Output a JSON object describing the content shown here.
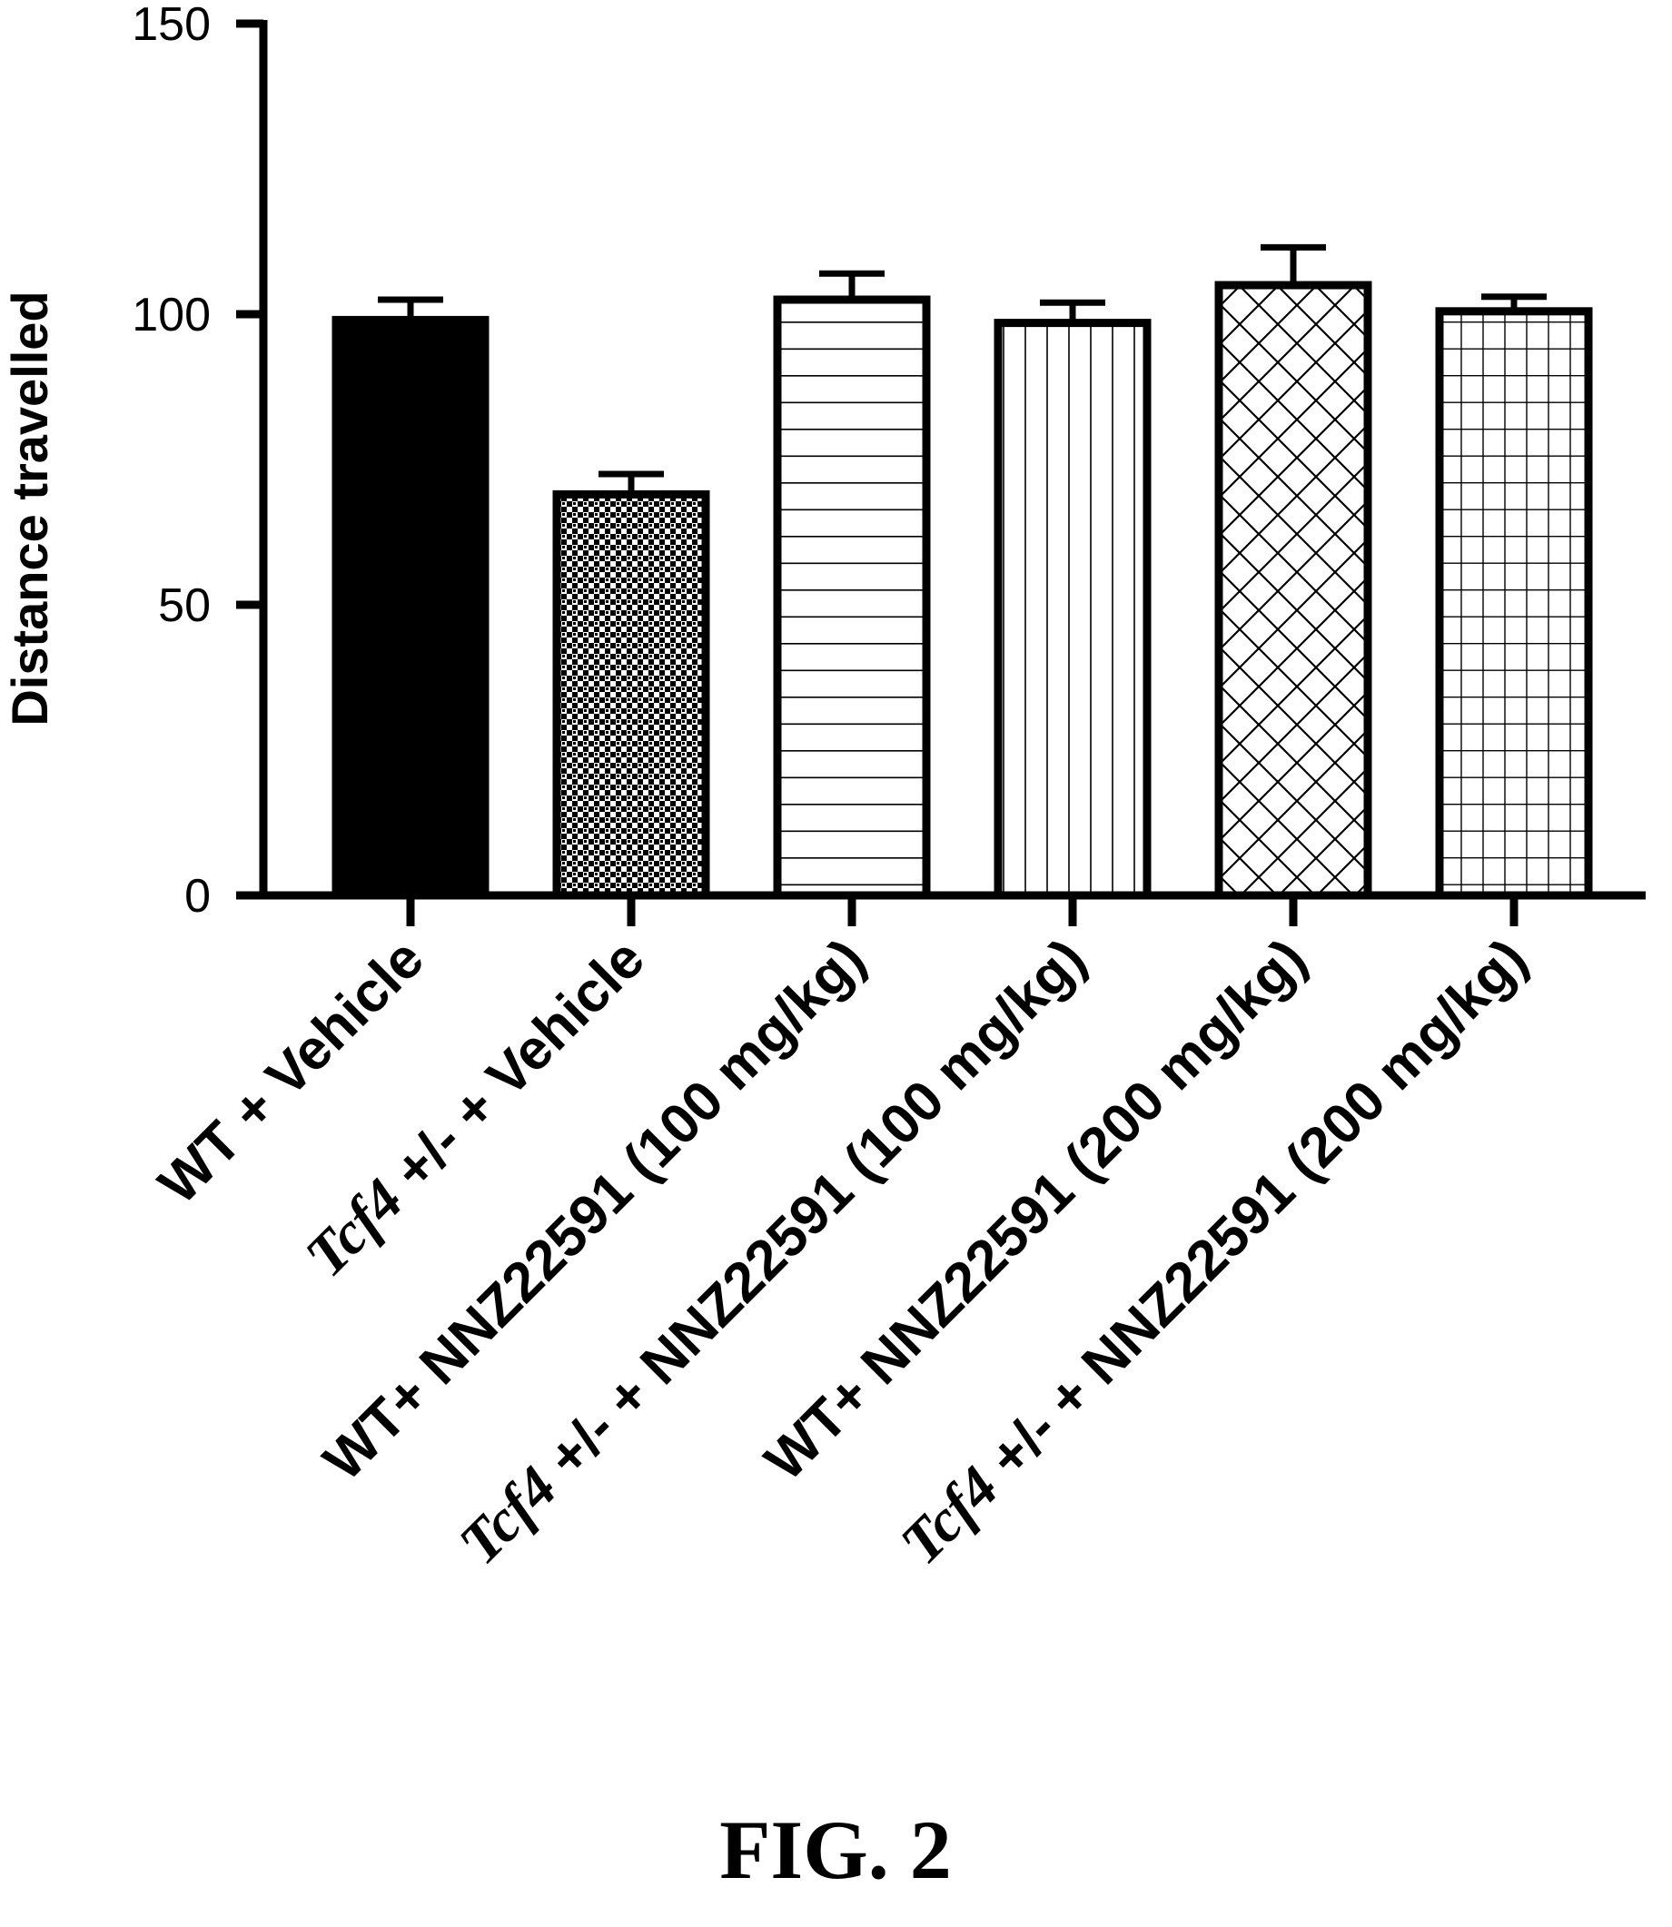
{
  "chart_data": {
    "type": "bar",
    "ylabel": "Distance travelled",
    "xlabel": "",
    "ylim": [
      0,
      150
    ],
    "yticks": [
      0,
      50,
      100,
      150
    ],
    "grid": false,
    "categories": [
      {
        "parts": [
          {
            "text": "WT + Vehicle",
            "italic": false
          }
        ]
      },
      {
        "parts": [
          {
            "text": "Tcf4",
            "italic": true
          },
          {
            "text": " +/- + Vehicle",
            "italic": false
          }
        ]
      },
      {
        "parts": [
          {
            "text": "WT+ NNZ22591 (100 mg/kg)",
            "italic": false
          }
        ]
      },
      {
        "parts": [
          {
            "text": "Tcf4",
            "italic": true
          },
          {
            "text": " +/- + NNZ22591 (100 mg/kg)",
            "italic": false
          }
        ]
      },
      {
        "parts": [
          {
            "text": "WT+ NNZ22591 (200 mg/kg)",
            "italic": false
          }
        ]
      },
      {
        "parts": [
          {
            "text": "Tcf4",
            "italic": true
          },
          {
            "text": " +/- + NNZ22591 (200 mg/kg)",
            "italic": false
          }
        ]
      }
    ],
    "values": [
      99,
      69,
      102.5,
      98.5,
      105,
      100.5
    ],
    "errors": [
      3.5,
      3.5,
      4.5,
      3.5,
      6.5,
      2.5
    ],
    "patterns": [
      "solid",
      "dots",
      "horizontal-lines",
      "vertical-lines",
      "crosshatch",
      "grid"
    ],
    "bar_color": "#000000"
  },
  "caption": "FIG. 2"
}
